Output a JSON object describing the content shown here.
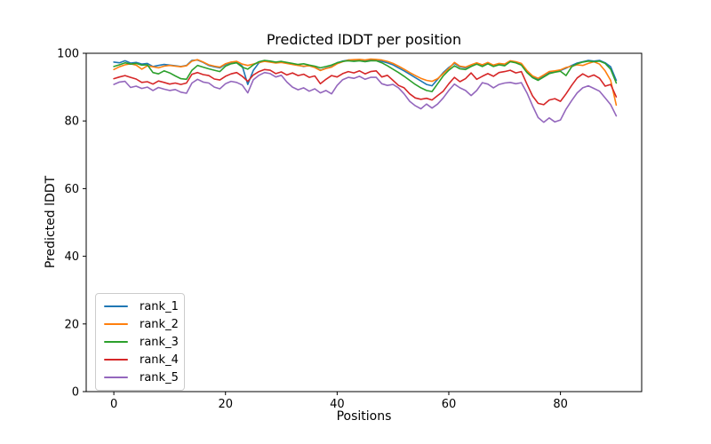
{
  "chart_data": {
    "type": "line",
    "title": "Predicted lDDT per position",
    "xlabel": "Positions",
    "ylabel": "Predicted lDDT",
    "x_ticks": [
      0,
      20,
      40,
      60,
      80
    ],
    "y_ticks": [
      0,
      20,
      40,
      60,
      80,
      100
    ],
    "xlim": [
      -4.95,
      94.55
    ],
    "ylim": [
      0,
      100
    ],
    "x_start": 0,
    "x_step": 1,
    "grid": false,
    "legend_position": "lower left",
    "series": [
      {
        "name": "rank_1",
        "color": "#1f77b4",
        "values": [
          97.4,
          97.2,
          97.8,
          97.1,
          97.3,
          96.8,
          97.0,
          96.1,
          96.4,
          96.7,
          96.5,
          96.3,
          96.1,
          96.4,
          97.9,
          98.0,
          97.3,
          96.4,
          96.0,
          95.7,
          96.7,
          97.3,
          97.5,
          96.2,
          90.8,
          95.0,
          97.2,
          97.8,
          97.6,
          97.3,
          97.5,
          97.1,
          96.8,
          96.5,
          96.1,
          96.4,
          95.9,
          95.0,
          95.6,
          96.0,
          97.2,
          97.7,
          98.0,
          97.8,
          98.0,
          97.7,
          98.0,
          98.0,
          97.6,
          97.2,
          96.6,
          95.7,
          94.8,
          93.8,
          92.8,
          91.8,
          90.8,
          90.4,
          92.3,
          94.3,
          95.8,
          97.0,
          96.0,
          95.7,
          96.5,
          97.1,
          96.4,
          97.1,
          96.3,
          96.8,
          96.6,
          97.7,
          97.4,
          96.8,
          94.6,
          93.0,
          92.3,
          93.3,
          94.3,
          94.6,
          94.9,
          95.6,
          96.4,
          97.1,
          97.5,
          97.9,
          97.7,
          97.9,
          97.2,
          96.0,
          92.0
        ]
      },
      {
        "name": "rank_2",
        "color": "#ff7f0e",
        "values": [
          95.2,
          96.0,
          96.6,
          96.9,
          96.5,
          95.3,
          96.3,
          96.0,
          95.7,
          96.2,
          96.4,
          96.2,
          96.0,
          96.3,
          97.7,
          98.1,
          97.4,
          96.6,
          96.2,
          95.9,
          96.9,
          97.4,
          97.6,
          96.8,
          96.4,
          96.8,
          97.3,
          97.6,
          97.4,
          97.1,
          97.3,
          97.0,
          96.7,
          96.4,
          96.2,
          96.3,
          95.8,
          94.9,
          95.5,
          95.9,
          96.9,
          97.5,
          98.0,
          98.1,
          98.2,
          98.0,
          98.3,
          98.2,
          98.0,
          97.6,
          97.0,
          96.2,
          95.3,
          94.3,
          93.4,
          92.6,
          92.0,
          91.7,
          92.5,
          94.0,
          95.5,
          97.3,
          96.2,
          95.9,
          96.6,
          97.2,
          96.6,
          97.3,
          96.5,
          97.0,
          96.8,
          97.8,
          97.5,
          97.0,
          94.9,
          93.3,
          92.6,
          93.6,
          94.6,
          94.8,
          95.1,
          95.8,
          96.2,
          96.6,
          96.4,
          97.0,
          97.5,
          96.8,
          94.8,
          92.0,
          84.7
        ]
      },
      {
        "name": "rank_3",
        "color": "#2ca02c",
        "values": [
          96.1,
          96.6,
          97.2,
          96.8,
          97.0,
          96.5,
          96.6,
          94.3,
          93.9,
          94.8,
          94.2,
          93.3,
          92.5,
          92.3,
          95.0,
          96.4,
          95.9,
          95.4,
          95.0,
          94.6,
          96.2,
          96.9,
          97.2,
          95.9,
          95.3,
          96.6,
          97.5,
          97.9,
          97.7,
          97.4,
          97.6,
          97.3,
          97.0,
          96.7,
          96.9,
          96.5,
          96.2,
          95.7,
          96.1,
          96.5,
          97.2,
          97.6,
          97.8,
          97.6,
          97.8,
          97.5,
          97.8,
          97.8,
          97.2,
          96.3,
          95.3,
          94.3,
          93.2,
          92.0,
          90.8,
          89.8,
          89.0,
          88.7,
          91.0,
          93.3,
          95.0,
          96.3,
          95.4,
          95.2,
          96.1,
          96.8,
          96.1,
          96.9,
          96.1,
          96.6,
          96.3,
          97.5,
          97.2,
          96.5,
          94.3,
          92.8,
          92.0,
          93.0,
          94.0,
          94.4,
          94.7,
          93.4,
          96.0,
          96.9,
          97.4,
          97.7,
          97.5,
          97.7,
          97.0,
          95.3,
          91.2
        ]
      },
      {
        "name": "rank_4",
        "color": "#d62728",
        "values": [
          92.5,
          93.0,
          93.4,
          92.9,
          92.4,
          91.4,
          91.6,
          90.9,
          91.8,
          91.4,
          90.9,
          91.2,
          90.8,
          91.2,
          93.8,
          94.3,
          93.7,
          93.4,
          92.4,
          92.1,
          93.2,
          93.9,
          94.3,
          93.2,
          91.7,
          93.6,
          94.6,
          95.2,
          95.0,
          94.0,
          94.5,
          93.6,
          94.2,
          93.4,
          93.8,
          92.9,
          93.3,
          91.0,
          92.3,
          93.4,
          93.0,
          94.0,
          94.6,
          94.2,
          94.8,
          93.9,
          94.6,
          94.8,
          93.0,
          93.5,
          92.0,
          90.5,
          89.8,
          88.0,
          86.8,
          86.4,
          86.7,
          86.2,
          87.5,
          88.8,
          91.0,
          92.9,
          91.6,
          92.5,
          94.2,
          92.3,
          93.2,
          94.0,
          93.2,
          94.3,
          94.6,
          95.0,
          94.2,
          94.6,
          90.9,
          87.4,
          85.2,
          84.8,
          86.2,
          86.6,
          85.8,
          88.0,
          90.5,
          92.7,
          93.9,
          93.0,
          93.6,
          92.6,
          90.3,
          90.8,
          87.1
        ]
      },
      {
        "name": "rank_5",
        "color": "#9467bd",
        "values": [
          90.8,
          91.5,
          91.7,
          89.9,
          90.3,
          89.6,
          90.0,
          89.0,
          89.9,
          89.4,
          89.0,
          89.3,
          88.5,
          88.2,
          91.2,
          92.3,
          91.5,
          91.2,
          90.0,
          89.5,
          91.0,
          91.7,
          91.4,
          90.6,
          88.3,
          92.2,
          93.5,
          94.3,
          94.0,
          93.0,
          93.5,
          91.5,
          90.0,
          89.2,
          89.8,
          88.8,
          89.5,
          88.3,
          89.0,
          88.0,
          90.5,
          92.2,
          92.9,
          92.6,
          93.2,
          92.3,
          92.9,
          92.9,
          91.0,
          90.5,
          90.8,
          89.8,
          88.0,
          85.8,
          84.5,
          83.6,
          85.0,
          83.8,
          85.0,
          86.8,
          89.0,
          90.9,
          89.8,
          89.0,
          87.5,
          89.0,
          91.3,
          90.9,
          89.8,
          90.8,
          91.2,
          91.4,
          91.0,
          91.3,
          88.3,
          84.5,
          81.0,
          79.6,
          80.9,
          79.7,
          80.3,
          83.5,
          86.0,
          88.3,
          89.8,
          90.4,
          89.6,
          88.8,
          86.8,
          84.8,
          81.5
        ]
      }
    ]
  }
}
